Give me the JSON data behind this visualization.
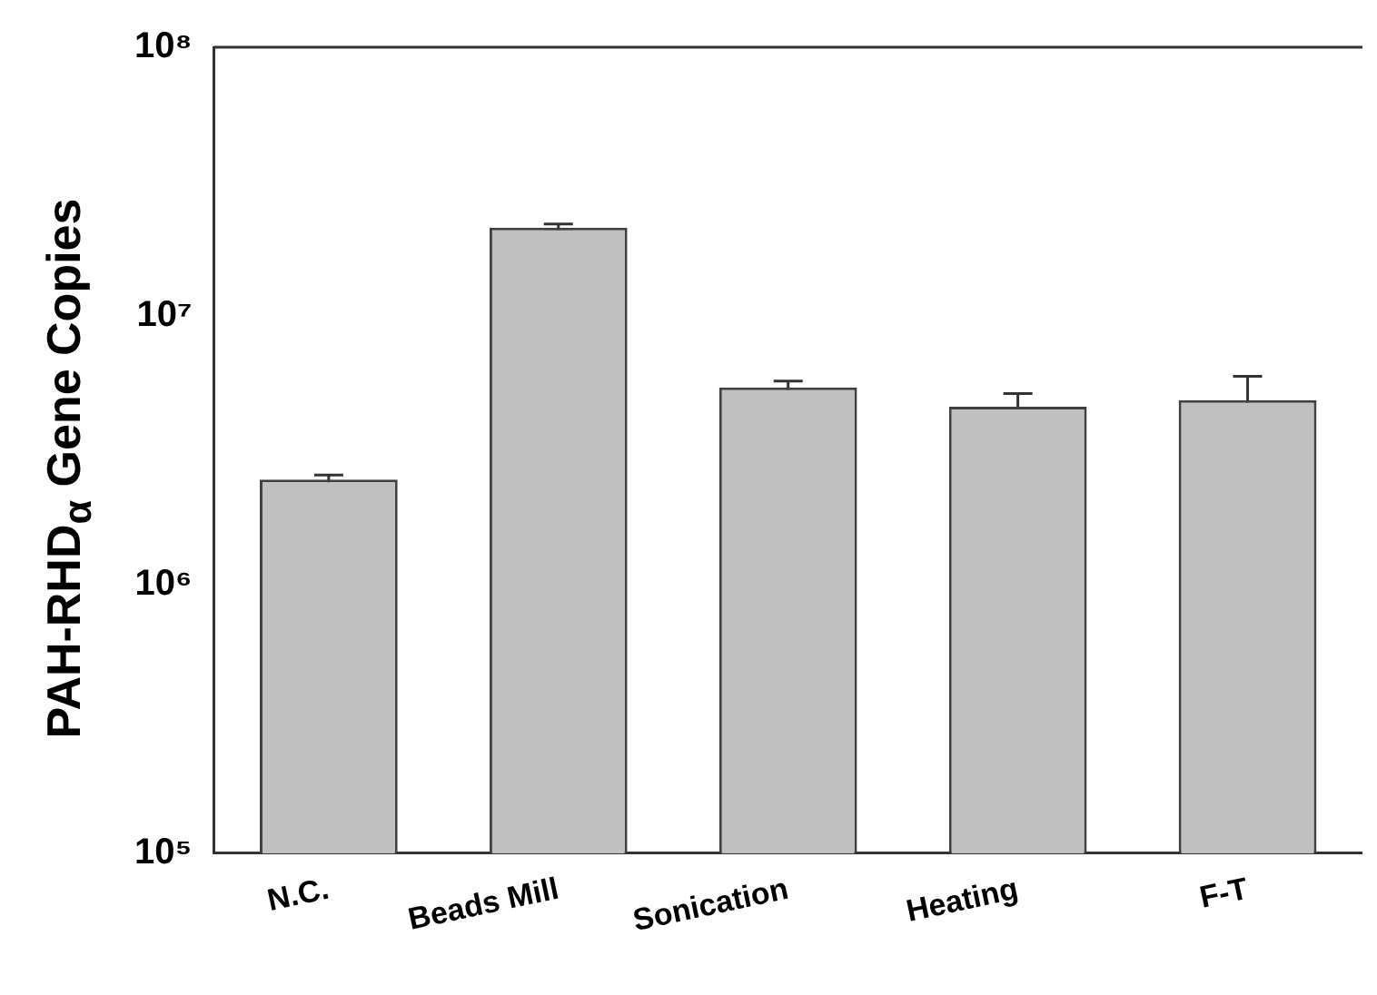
{
  "chart_data": {
    "type": "bar",
    "ylabel": "PAH-RHD$_{α}$ Gene Copies",
    "categories": [
      "N.C.",
      "Beads Mill",
      "Sonication",
      "Heating",
      "F-T"
    ],
    "values": [
      2460000,
      21300000,
      5420000,
      4590000,
      4860000
    ],
    "errors": [
      100000,
      700000,
      300000,
      550000,
      1100000
    ],
    "color": "#c0c0c0",
    "log": true,
    "ylim": [
      100000,
      100000000
    ],
    "yticks": [
      {
        "value": 100000,
        "label": "10⁵"
      },
      {
        "value": 1000000,
        "label": "10⁶"
      },
      {
        "value": 10000000,
        "label": "10⁷"
      },
      {
        "value": 100000000,
        "label": "10⁸"
      }
    ],
    "grid": false,
    "legend": false
  }
}
